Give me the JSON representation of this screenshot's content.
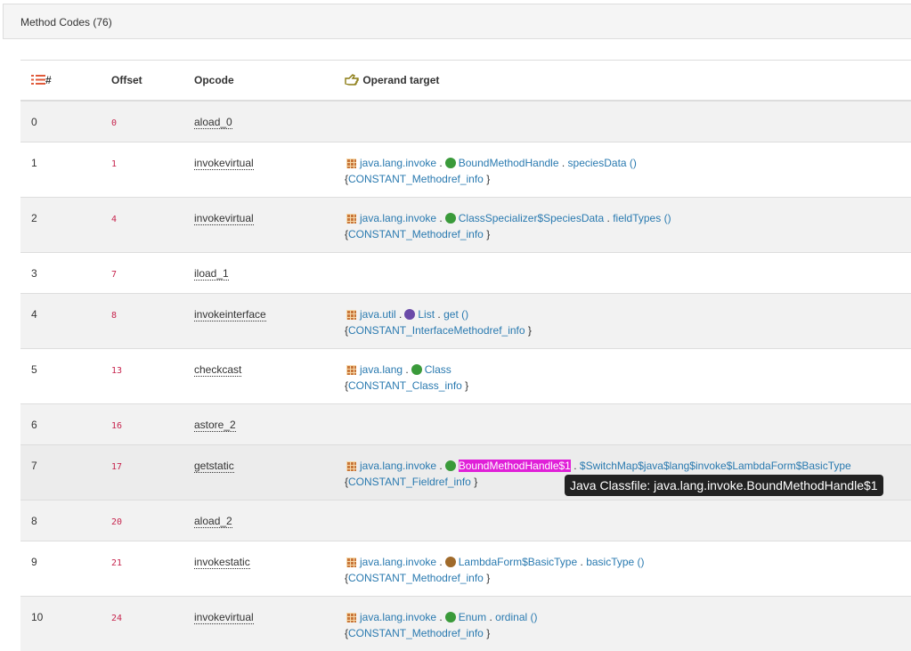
{
  "header": {
    "title": "Method Codes (76)"
  },
  "table": {
    "columns": [
      "#",
      "Offset",
      "Opcode",
      "Operand target"
    ],
    "separator": ".",
    "brace_open": "{",
    "brace_close": "}",
    "rows": [
      {
        "index": 0,
        "offset": 0,
        "opcode": "aload_0"
      },
      {
        "index": 1,
        "offset": 1,
        "opcode": "invokevirtual",
        "operand": {
          "package": "java.lang.invoke",
          "kind": "class",
          "class": "BoundMethodHandle",
          "member": "speciesData ()",
          "constant": "CONSTANT_Methodref_info"
        }
      },
      {
        "index": 2,
        "offset": 4,
        "opcode": "invokevirtual",
        "operand": {
          "package": "java.lang.invoke",
          "kind": "class",
          "class": "ClassSpecializer$SpeciesData",
          "member": "fieldTypes ()",
          "constant": "CONSTANT_Methodref_info"
        }
      },
      {
        "index": 3,
        "offset": 7,
        "opcode": "iload_1"
      },
      {
        "index": 4,
        "offset": 8,
        "opcode": "invokeinterface",
        "operand": {
          "package": "java.util",
          "kind": "interface",
          "class": "List",
          "member": "get ()",
          "constant": "CONSTANT_InterfaceMethodref_info"
        }
      },
      {
        "index": 5,
        "offset": 13,
        "opcode": "checkcast",
        "operand": {
          "package": "java.lang",
          "kind": "class",
          "class": "Class",
          "constant": "CONSTANT_Class_info"
        }
      },
      {
        "index": 6,
        "offset": 16,
        "opcode": "astore_2"
      },
      {
        "index": 7,
        "offset": 17,
        "opcode": "getstatic",
        "operand": {
          "package": "java.lang.invoke",
          "kind": "class-search",
          "class": "BoundMethodHandle$1",
          "member": "$SwitchMap$java$lang$invoke$LambdaForm$BasicType",
          "constant": "CONSTANT_Fieldref_info"
        }
      },
      {
        "index": 8,
        "offset": 20,
        "opcode": "aload_2"
      },
      {
        "index": 9,
        "offset": 21,
        "opcode": "invokestatic",
        "operand": {
          "package": "java.lang.invoke",
          "kind": "enum-search",
          "class": "LambdaForm$BasicType",
          "member": "basicType ()",
          "constant": "CONSTANT_Methodref_info"
        }
      },
      {
        "index": 10,
        "offset": 24,
        "opcode": "invokevirtual",
        "operand": {
          "package": "java.lang.invoke",
          "kind": "class",
          "class": "Enum",
          "member": "ordinal ()",
          "constant": "CONSTANT_Methodref_info"
        }
      }
    ]
  },
  "tooltip": "Java Classfile: java.lang.invoke.BoundMethodHandle$1"
}
